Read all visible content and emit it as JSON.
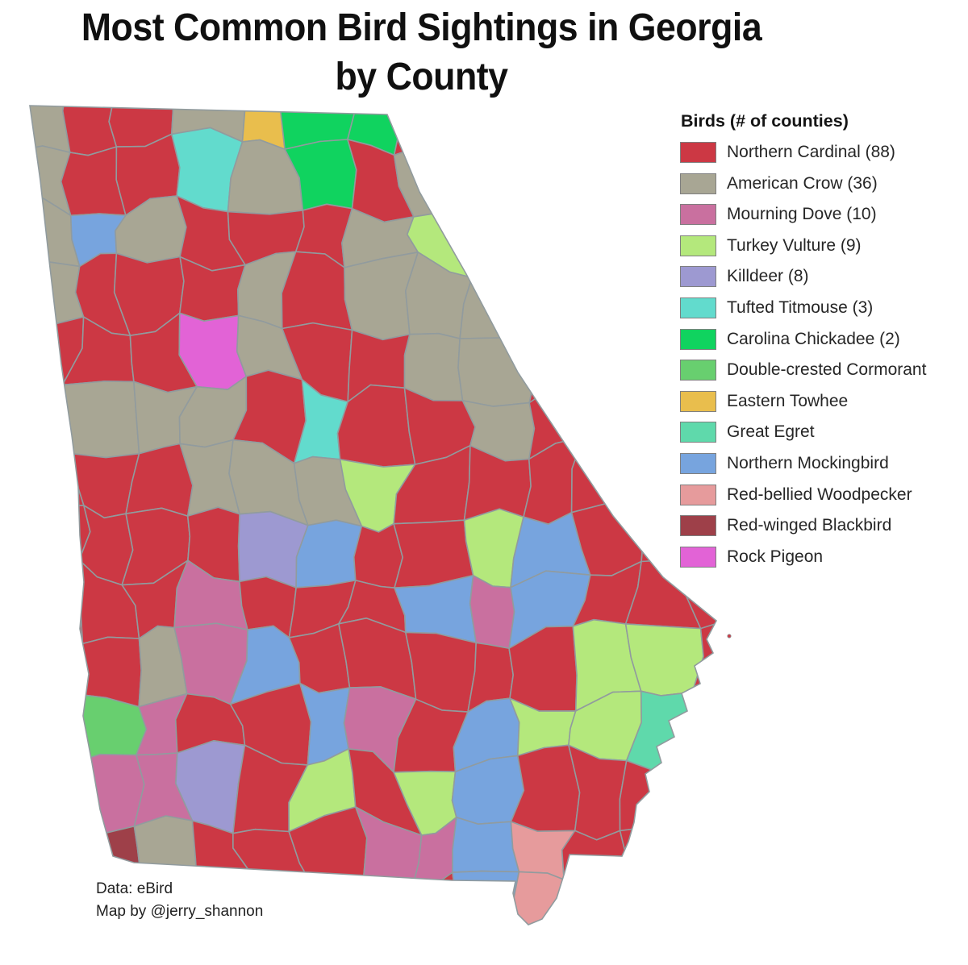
{
  "title": {
    "line1": "Most Common Bird Sightings in Georgia",
    "line2": "by County"
  },
  "legend": {
    "title": "Birds (# of counties)",
    "items": [
      {
        "key": "R",
        "label": "Northern Cardinal (88)",
        "color": "#cc3844"
      },
      {
        "key": "A",
        "label": "American Crow (36)",
        "color": "#a8a694"
      },
      {
        "key": "M",
        "label": "Mourning Dove (10)",
        "color": "#c9709f"
      },
      {
        "key": "T",
        "label": "Turkey Vulture (9)",
        "color": "#b4e87c"
      },
      {
        "key": "K",
        "label": "Killdeer (8)",
        "color": "#9d99d1"
      },
      {
        "key": "U",
        "label": "Tufted Titmouse (3)",
        "color": "#62dbcd"
      },
      {
        "key": "C",
        "label": "Carolina Chickadee (2)",
        "color": "#10d35f"
      },
      {
        "key": "D",
        "label": "Double-crested Cormorant",
        "color": "#68cf6f"
      },
      {
        "key": "E",
        "label": "Eastern Towhee",
        "color": "#e9be4d"
      },
      {
        "key": "G",
        "label": "Great Egret",
        "color": "#5fd9ab"
      },
      {
        "key": "N",
        "label": "Northern Mockingbird",
        "color": "#77a4de"
      },
      {
        "key": "W",
        "label": "Red-bellied Woodpecker",
        "color": "#e69b9c"
      },
      {
        "key": "B",
        "label": "Red-winged Blackbird",
        "color": "#9e4049"
      },
      {
        "key": "P",
        "label": "Rock Pigeon",
        "color": "#e263d6"
      }
    ]
  },
  "caption": {
    "line1": "Data: eBird",
    "line2": "Map by @jerry_shannon"
  },
  "map": {
    "region": "Georgia counties",
    "border_color": "#919b9e",
    "cell_rows": [
      "ARRAECCRRRRRR",
      "ARRUACRARRRRR",
      "ANARRRATRRRRR",
      "ARRRARAAARRRR",
      "RRRPARRAARRRR",
      "AAAARURRARRRR",
      "RRRAAATRRRRRR",
      "RRRRKNRRTNRRR",
      "RRRMRRRNMNRRR",
      "RRAMNRRRRRTTR",
      "RDMRRNMRNTTGG",
      "RMMKRTRTNRRRR",
      "RBARRRMMNWRRR",
      "RRRRRRRRNWRRR"
    ]
  },
  "chart_data": {
    "type": "heatmap",
    "subtype": "choropleth-map",
    "region": "Georgia, USA (counties)",
    "title": "Most Common Bird Sightings in Georgia by County",
    "legend_title": "Birds (# of counties)",
    "series": [
      {
        "name": "Northern Cardinal",
        "counties": 88
      },
      {
        "name": "American Crow",
        "counties": 36
      },
      {
        "name": "Mourning Dove",
        "counties": 10
      },
      {
        "name": "Turkey Vulture",
        "counties": 9
      },
      {
        "name": "Killdeer",
        "counties": 8
      },
      {
        "name": "Tufted Titmouse",
        "counties": 3
      },
      {
        "name": "Carolina Chickadee",
        "counties": 2
      },
      {
        "name": "Double-crested Cormorant",
        "counties": null
      },
      {
        "name": "Eastern Towhee",
        "counties": null
      },
      {
        "name": "Great Egret",
        "counties": null
      },
      {
        "name": "Northern Mockingbird",
        "counties": null
      },
      {
        "name": "Red-bellied Woodpecker",
        "counties": null
      },
      {
        "name": "Red-winged Blackbird",
        "counties": null
      },
      {
        "name": "Rock Pigeon",
        "counties": null
      }
    ],
    "legend_position": "right",
    "source": "eBird",
    "author": "@jerry_shannon"
  }
}
